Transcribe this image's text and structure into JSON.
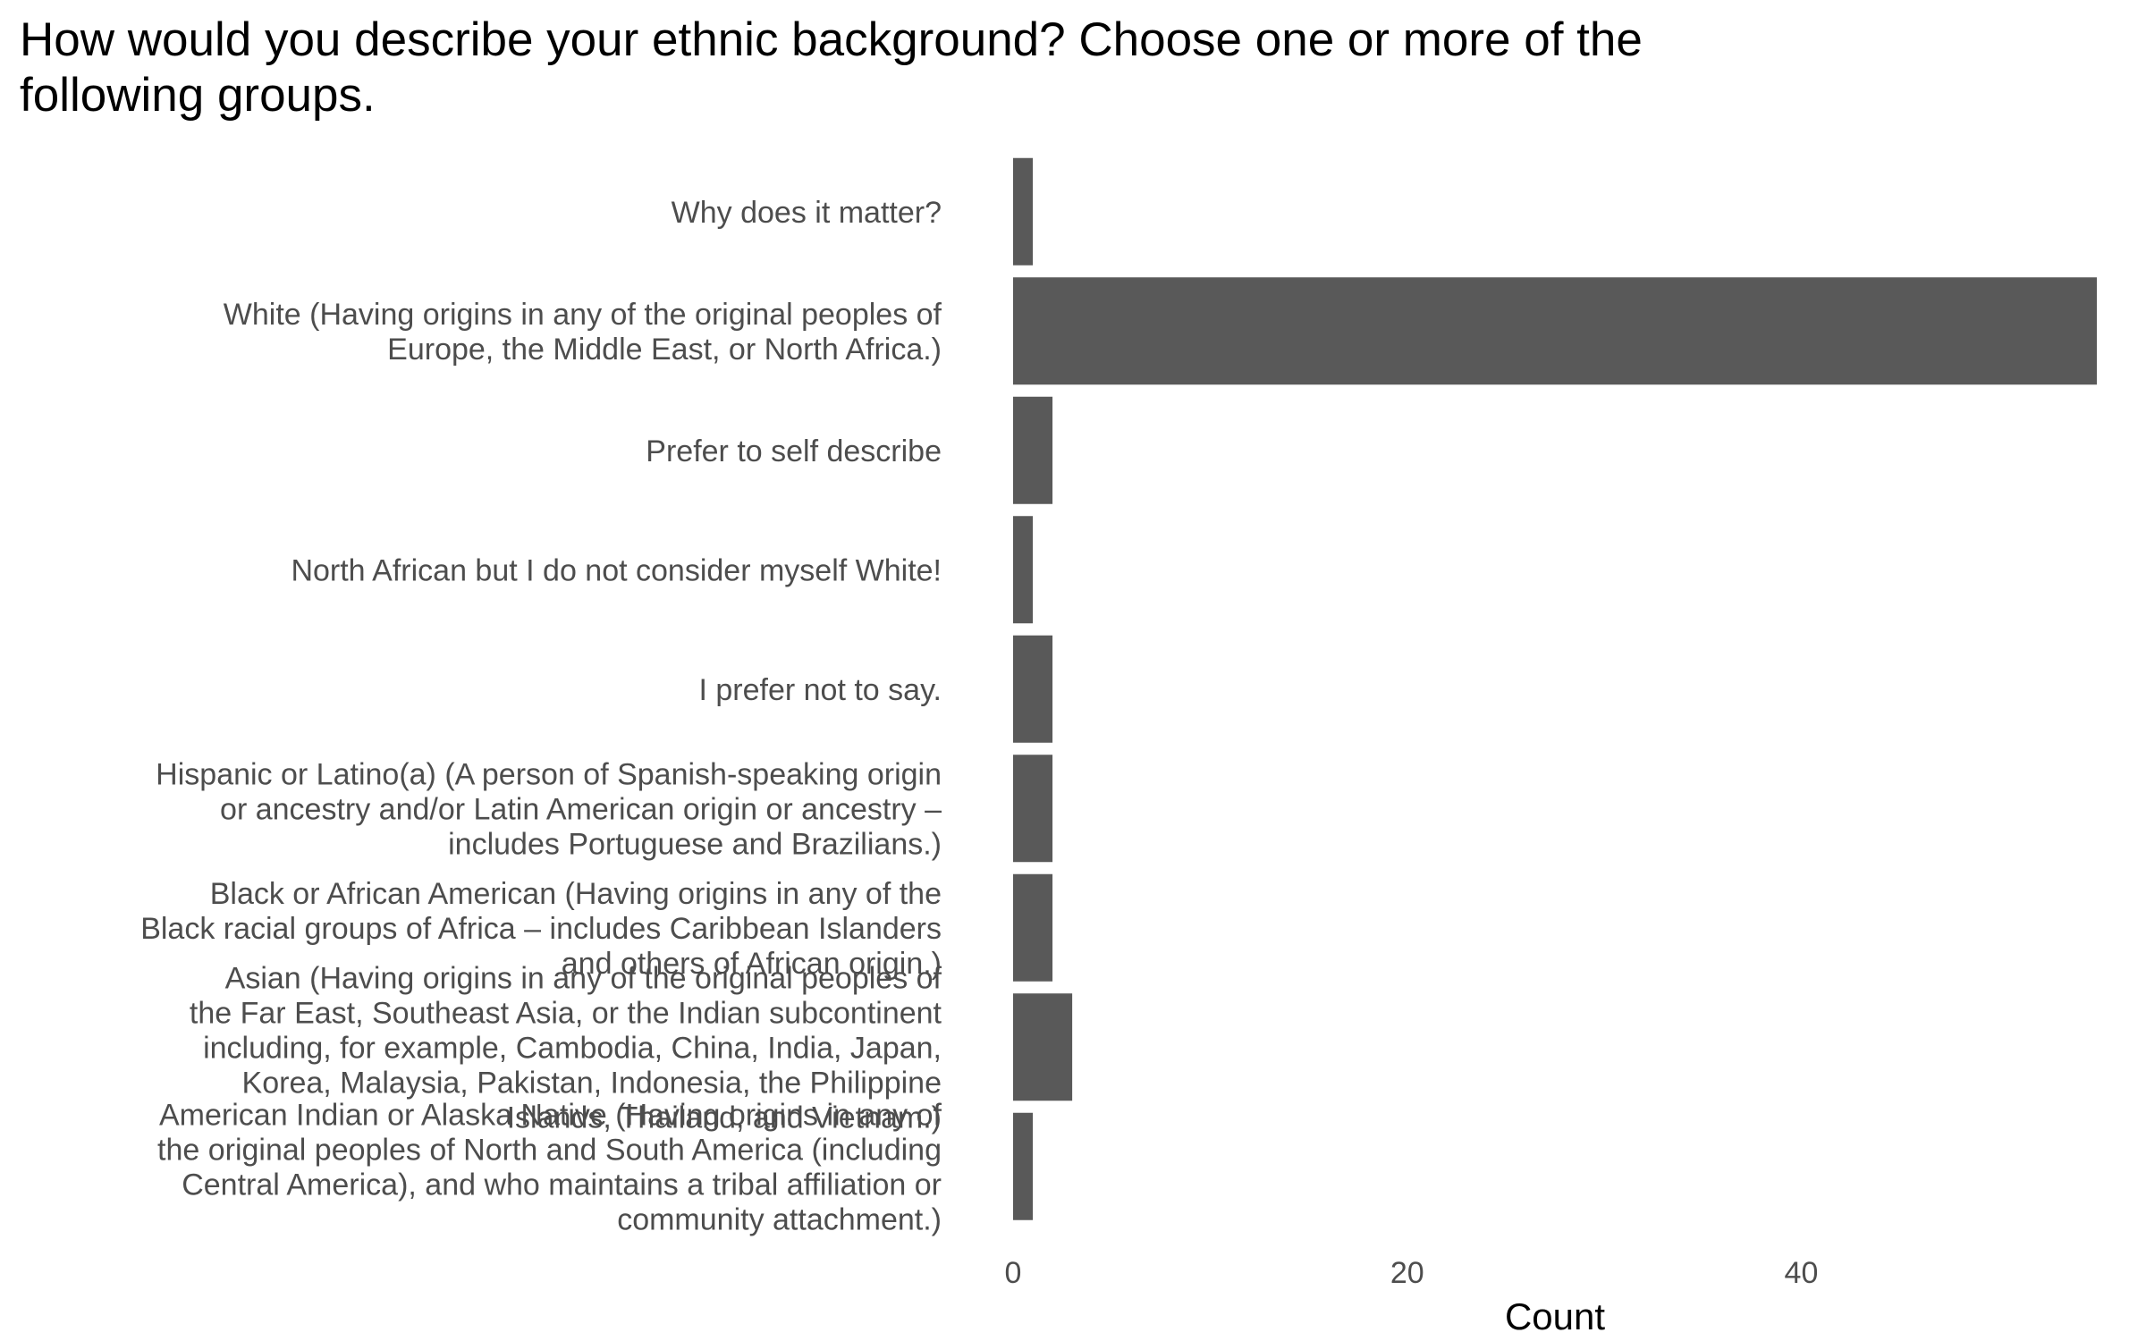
{
  "chart_data": {
    "type": "bar",
    "orientation": "horizontal",
    "title": "How would you describe your ethnic background? Choose one or more of the\nfollowing groups.",
    "xlabel": "Count",
    "ylabel": "",
    "xlim": [
      0,
      55
    ],
    "x_ticks": [
      0,
      20,
      40
    ],
    "grid": false,
    "legend": "none",
    "bar_color": "#595959",
    "categories": [
      "Why does it matter?",
      "White (Having origins in any of the original peoples of\nEurope, the Middle East, or North Africa.)",
      "Prefer to self describe",
      "North African but I do not consider myself White!",
      "I prefer not to say.",
      "Hispanic or Latino(a) (A person of Spanish-speaking origin\nor ancestry and/or Latin American origin or ancestry –\nincludes Portuguese and Brazilians.)",
      "Black or African American (Having origins in any of the\nBlack racial groups of Africa – includes Caribbean Islanders\nand others of African origin.)",
      "Asian (Having origins in any of the original peoples of\nthe Far East, Southeast Asia, or the Indian subcontinent\nincluding, for example, Cambodia, China, India, Japan,\nKorea, Malaysia, Pakistan, Indonesia, the Philippine\nIslands, Thailand, and Vietnam.)",
      "American Indian or Alaska Native (Having origins in any of\nthe original peoples of North and South America (including\nCentral America), and who maintains a tribal affiliation or\ncommunity attachment.)"
    ],
    "values": [
      1,
      55,
      2,
      1,
      2,
      2,
      2,
      3,
      1
    ]
  }
}
